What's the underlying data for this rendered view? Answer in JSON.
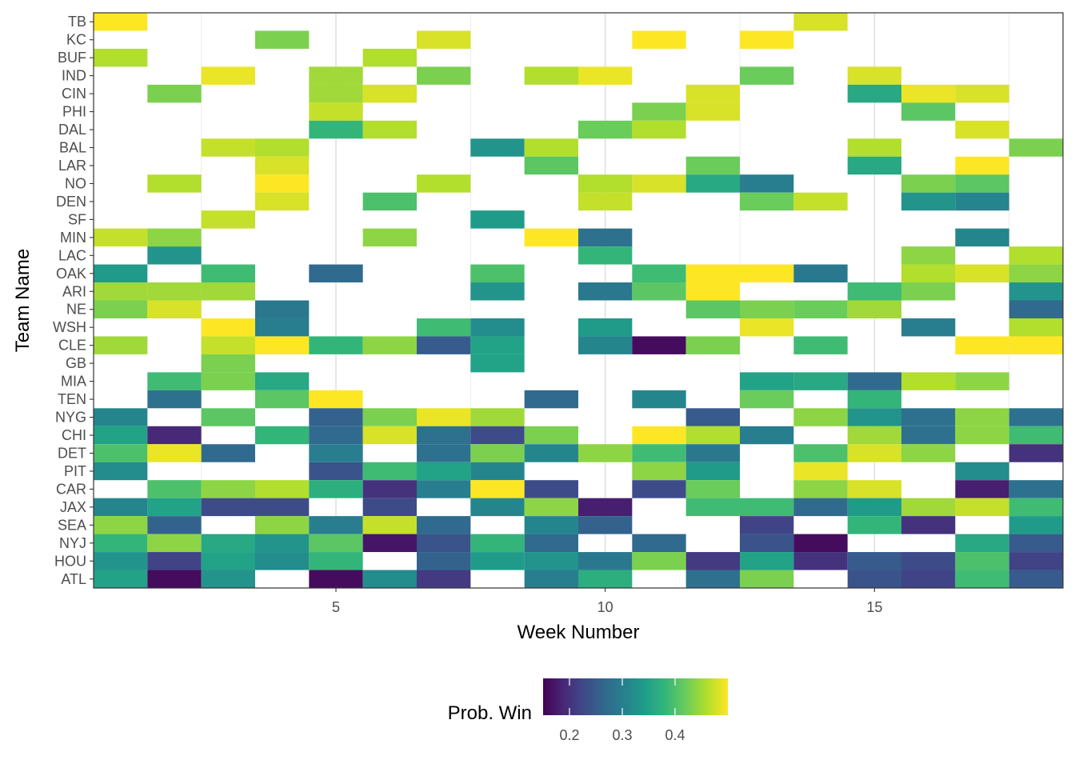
{
  "chart_data": {
    "type": "heatmap",
    "xlabel": "Week Number",
    "ylabel": "Team Name",
    "x_ticks": [
      5,
      10,
      15
    ],
    "xlim": [
      0.5,
      18.5
    ],
    "weeks": [
      1,
      2,
      3,
      4,
      5,
      6,
      7,
      8,
      9,
      10,
      11,
      12,
      13,
      14,
      15,
      16,
      17,
      18
    ],
    "teams": [
      "TB",
      "KC",
      "BUF",
      "IND",
      "CIN",
      "PHI",
      "DAL",
      "BAL",
      "LAR",
      "NO",
      "DEN",
      "SF",
      "MIN",
      "LAC",
      "OAK",
      "ARI",
      "NE",
      "WSH",
      "CLE",
      "GB",
      "MIA",
      "TEN",
      "NYG",
      "CHI",
      "DET",
      "PIT",
      "CAR",
      "JAX",
      "SEA",
      "NYJ",
      "HOU",
      "ATL"
    ],
    "grid": true,
    "legend": {
      "title": "Prob. Win",
      "position": "bottom",
      "min": 0.15,
      "max": 0.5,
      "ticks": [
        0.2,
        0.3,
        0.4
      ],
      "tick_labels": [
        "0.2",
        "0.3",
        "0.4"
      ],
      "palette": [
        "#440154",
        "#482878",
        "#3E4A89",
        "#31688E",
        "#26828E",
        "#1F9E89",
        "#35B779",
        "#6DCD59",
        "#B4DE2C",
        "#FDE725"
      ]
    },
    "cells": {
      "TB": [
        [
          1,
          0.5
        ],
        [
          14,
          0.48
        ]
      ],
      "KC": [
        [
          4,
          0.43
        ],
        [
          7,
          0.48
        ],
        [
          11,
          0.5
        ],
        [
          13,
          0.5
        ]
      ],
      "BUF": [
        [
          1,
          0.46
        ],
        [
          6,
          0.46
        ]
      ],
      "IND": [
        [
          3,
          0.49
        ],
        [
          5,
          0.45
        ],
        [
          7,
          0.43
        ],
        [
          9,
          0.46
        ],
        [
          10,
          0.49
        ],
        [
          13,
          0.42
        ],
        [
          15,
          0.48
        ]
      ],
      "CIN": [
        [
          2,
          0.43
        ],
        [
          5,
          0.45
        ],
        [
          6,
          0.48
        ],
        [
          12,
          0.48
        ],
        [
          15,
          0.36
        ],
        [
          16,
          0.49
        ],
        [
          17,
          0.48
        ]
      ],
      "PHI": [
        [
          5,
          0.47
        ],
        [
          11,
          0.43
        ],
        [
          12,
          0.48
        ],
        [
          16,
          0.41
        ]
      ],
      "DAL": [
        [
          5,
          0.38
        ],
        [
          6,
          0.46
        ],
        [
          10,
          0.42
        ],
        [
          11,
          0.46
        ],
        [
          17,
          0.48
        ]
      ],
      "BAL": [
        [
          3,
          0.47
        ],
        [
          4,
          0.46
        ],
        [
          8,
          0.33
        ],
        [
          9,
          0.46
        ],
        [
          15,
          0.46
        ],
        [
          18,
          0.43
        ]
      ],
      "LAR": [
        [
          4,
          0.48
        ],
        [
          9,
          0.41
        ],
        [
          12,
          0.42
        ],
        [
          15,
          0.36
        ],
        [
          17,
          0.5
        ]
      ],
      "NO": [
        [
          2,
          0.46
        ],
        [
          4,
          0.5
        ],
        [
          7,
          0.46
        ],
        [
          10,
          0.46
        ],
        [
          11,
          0.48
        ],
        [
          12,
          0.36
        ],
        [
          13,
          0.3
        ],
        [
          16,
          0.43
        ],
        [
          17,
          0.41
        ]
      ],
      "DEN": [
        [
          4,
          0.48
        ],
        [
          6,
          0.4
        ],
        [
          10,
          0.47
        ],
        [
          13,
          0.42
        ],
        [
          14,
          0.47
        ],
        [
          16,
          0.33
        ],
        [
          17,
          0.31
        ]
      ],
      "SF": [
        [
          3,
          0.47
        ],
        [
          8,
          0.34
        ]
      ],
      "MIN": [
        [
          1,
          0.47
        ],
        [
          2,
          0.44
        ],
        [
          6,
          0.44
        ],
        [
          9,
          0.5
        ],
        [
          10,
          0.28
        ],
        [
          17,
          0.31
        ]
      ],
      "LAC": [
        [
          2,
          0.33
        ],
        [
          10,
          0.38
        ],
        [
          16,
          0.44
        ],
        [
          18,
          0.46
        ]
      ],
      "OAK": [
        [
          1,
          0.34
        ],
        [
          3,
          0.39
        ],
        [
          5,
          0.27
        ],
        [
          8,
          0.4
        ],
        [
          11,
          0.39
        ],
        [
          12,
          0.5
        ],
        [
          13,
          0.5
        ],
        [
          14,
          0.29
        ],
        [
          16,
          0.46
        ],
        [
          17,
          0.48
        ],
        [
          18,
          0.44
        ]
      ],
      "ARI": [
        [
          1,
          0.45
        ],
        [
          2,
          0.45
        ],
        [
          3,
          0.45
        ],
        [
          8,
          0.33
        ],
        [
          10,
          0.29
        ],
        [
          11,
          0.41
        ],
        [
          12,
          0.5
        ],
        [
          15,
          0.39
        ],
        [
          16,
          0.43
        ],
        [
          18,
          0.33
        ]
      ],
      "NE": [
        [
          1,
          0.43
        ],
        [
          2,
          0.48
        ],
        [
          4,
          0.29
        ],
        [
          12,
          0.41
        ],
        [
          13,
          0.43
        ],
        [
          14,
          0.42
        ],
        [
          15,
          0.45
        ],
        [
          18,
          0.27
        ]
      ],
      "WSH": [
        [
          3,
          0.5
        ],
        [
          4,
          0.3
        ],
        [
          7,
          0.39
        ],
        [
          8,
          0.32
        ],
        [
          10,
          0.34
        ],
        [
          13,
          0.49
        ],
        [
          16,
          0.3
        ],
        [
          18,
          0.46
        ]
      ],
      "CLE": [
        [
          1,
          0.45
        ],
        [
          3,
          0.47
        ],
        [
          4,
          0.5
        ],
        [
          5,
          0.38
        ],
        [
          6,
          0.44
        ],
        [
          7,
          0.25
        ],
        [
          8,
          0.35
        ],
        [
          10,
          0.31
        ],
        [
          11,
          0.16
        ],
        [
          12,
          0.43
        ],
        [
          14,
          0.39
        ],
        [
          17,
          0.5
        ],
        [
          18,
          0.5
        ]
      ],
      "GB": [
        [
          3,
          0.43
        ],
        [
          8,
          0.35
        ]
      ],
      "MIA": [
        [
          2,
          0.39
        ],
        [
          3,
          0.43
        ],
        [
          4,
          0.36
        ],
        [
          13,
          0.35
        ],
        [
          14,
          0.36
        ],
        [
          15,
          0.27
        ],
        [
          16,
          0.46
        ],
        [
          17,
          0.44
        ]
      ],
      "TEN": [
        [
          2,
          0.28
        ],
        [
          4,
          0.41
        ],
        [
          5,
          0.5
        ],
        [
          9,
          0.27
        ],
        [
          11,
          0.31
        ],
        [
          13,
          0.42
        ],
        [
          15,
          0.38
        ]
      ],
      "NYG": [
        [
          1,
          0.31
        ],
        [
          3,
          0.41
        ],
        [
          5,
          0.26
        ],
        [
          6,
          0.43
        ],
        [
          7,
          0.49
        ],
        [
          8,
          0.45
        ],
        [
          12,
          0.25
        ],
        [
          14,
          0.44
        ],
        [
          15,
          0.33
        ],
        [
          16,
          0.28
        ],
        [
          17,
          0.44
        ],
        [
          18,
          0.28
        ]
      ],
      "CHI": [
        [
          1,
          0.35
        ],
        [
          2,
          0.19
        ],
        [
          4,
          0.38
        ],
        [
          5,
          0.27
        ],
        [
          6,
          0.48
        ],
        [
          7,
          0.28
        ],
        [
          8,
          0.23
        ],
        [
          9,
          0.43
        ],
        [
          11,
          0.5
        ],
        [
          12,
          0.46
        ],
        [
          13,
          0.3
        ],
        [
          15,
          0.45
        ],
        [
          16,
          0.28
        ],
        [
          17,
          0.44
        ],
        [
          18,
          0.39
        ]
      ],
      "DET": [
        [
          1,
          0.4
        ],
        [
          2,
          0.49
        ],
        [
          3,
          0.27
        ],
        [
          5,
          0.3
        ],
        [
          7,
          0.28
        ],
        [
          8,
          0.43
        ],
        [
          9,
          0.31
        ],
        [
          10,
          0.44
        ],
        [
          11,
          0.39
        ],
        [
          12,
          0.29
        ],
        [
          14,
          0.4
        ],
        [
          15,
          0.48
        ],
        [
          16,
          0.44
        ],
        [
          18,
          0.2
        ]
      ],
      "PIT": [
        [
          1,
          0.32
        ],
        [
          5,
          0.24
        ],
        [
          6,
          0.39
        ],
        [
          7,
          0.35
        ],
        [
          8,
          0.31
        ],
        [
          11,
          0.44
        ],
        [
          12,
          0.34
        ],
        [
          14,
          0.49
        ],
        [
          17,
          0.32
        ]
      ],
      "CAR": [
        [
          2,
          0.4
        ],
        [
          3,
          0.44
        ],
        [
          4,
          0.46
        ],
        [
          5,
          0.37
        ],
        [
          6,
          0.2
        ],
        [
          7,
          0.3
        ],
        [
          8,
          0.5
        ],
        [
          9,
          0.23
        ],
        [
          11,
          0.23
        ],
        [
          12,
          0.42
        ],
        [
          14,
          0.44
        ],
        [
          15,
          0.48
        ],
        [
          17,
          0.18
        ],
        [
          18,
          0.28
        ]
      ],
      "JAX": [
        [
          1,
          0.31
        ],
        [
          2,
          0.35
        ],
        [
          3,
          0.23
        ],
        [
          4,
          0.23
        ],
        [
          6,
          0.23
        ],
        [
          8,
          0.31
        ],
        [
          9,
          0.44
        ],
        [
          10,
          0.18
        ],
        [
          12,
          0.39
        ],
        [
          13,
          0.39
        ],
        [
          14,
          0.27
        ],
        [
          15,
          0.34
        ],
        [
          16,
          0.45
        ],
        [
          17,
          0.47
        ],
        [
          18,
          0.39
        ]
      ],
      "SEA": [
        [
          1,
          0.44
        ],
        [
          2,
          0.26
        ],
        [
          4,
          0.44
        ],
        [
          5,
          0.3
        ],
        [
          6,
          0.47
        ],
        [
          7,
          0.27
        ],
        [
          9,
          0.31
        ],
        [
          10,
          0.26
        ],
        [
          13,
          0.22
        ],
        [
          15,
          0.38
        ],
        [
          16,
          0.2
        ],
        [
          18,
          0.34
        ]
      ],
      "NYJ": [
        [
          1,
          0.38
        ],
        [
          2,
          0.44
        ],
        [
          3,
          0.36
        ],
        [
          4,
          0.33
        ],
        [
          5,
          0.41
        ],
        [
          6,
          0.17
        ],
        [
          7,
          0.24
        ],
        [
          8,
          0.38
        ],
        [
          9,
          0.27
        ],
        [
          11,
          0.27
        ],
        [
          13,
          0.24
        ],
        [
          14,
          0.16
        ],
        [
          17,
          0.36
        ],
        [
          18,
          0.25
        ]
      ],
      "HOU": [
        [
          1,
          0.33
        ],
        [
          2,
          0.22
        ],
        [
          3,
          0.35
        ],
        [
          4,
          0.32
        ],
        [
          5,
          0.38
        ],
        [
          7,
          0.26
        ],
        [
          8,
          0.34
        ],
        [
          9,
          0.33
        ],
        [
          10,
          0.29
        ],
        [
          11,
          0.43
        ],
        [
          12,
          0.21
        ],
        [
          13,
          0.35
        ],
        [
          14,
          0.2
        ],
        [
          15,
          0.25
        ],
        [
          16,
          0.23
        ],
        [
          17,
          0.4
        ],
        [
          18,
          0.22
        ]
      ],
      "ATL": [
        [
          1,
          0.35
        ],
        [
          2,
          0.16
        ],
        [
          3,
          0.33
        ],
        [
          5,
          0.16
        ],
        [
          6,
          0.32
        ],
        [
          7,
          0.21
        ],
        [
          9,
          0.3
        ],
        [
          10,
          0.37
        ],
        [
          12,
          0.28
        ],
        [
          13,
          0.43
        ],
        [
          15,
          0.24
        ],
        [
          16,
          0.22
        ],
        [
          17,
          0.39
        ],
        [
          18,
          0.25
        ]
      ]
    }
  }
}
